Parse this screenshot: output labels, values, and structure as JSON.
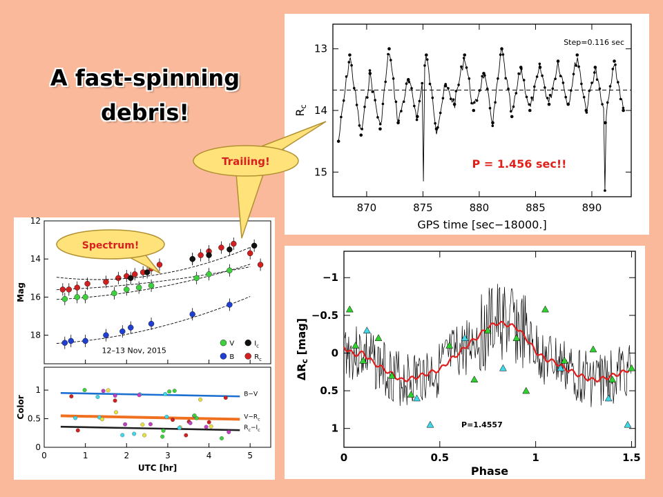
{
  "slide": {
    "title_line1": "A fast-spinning",
    "title_line2": "debris!",
    "callout_trailing": "Trailing!",
    "callout_spectrum": "Spectrum!",
    "period_annotation": "P = 1.456 sec!!",
    "colors": {
      "background": "#f9b99a",
      "callout_fill": "#ffe27a",
      "annotation": "#e0201a"
    }
  },
  "chart_data": [
    {
      "type": "line",
      "id": "trailing-lightcurve",
      "xlabel": "GPS time [sec−18000.]",
      "ylabel": "R",
      "ylabel_sub": "c",
      "annotation": "Step=0.116 sec",
      "xlim": [
        867,
        893.5
      ],
      "ylim": [
        15.4,
        12.6
      ],
      "y_inverted": true,
      "xticks": [
        870,
        875,
        880,
        885,
        890
      ],
      "yticks": [
        13,
        14,
        15
      ],
      "mean_line": 13.67,
      "series": [
        {
          "x": [
            867.5,
            868.5,
            869.5,
            870.3,
            871.2,
            872.0,
            872.8,
            873.7,
            874.5,
            875.3,
            876.2,
            877.0,
            877.8,
            878.7,
            879.5,
            880.4,
            881.2,
            882.0,
            882.9,
            883.7,
            884.5,
            885.4,
            886.2,
            887.0,
            887.9,
            888.7,
            889.5,
            890.3,
            891.2,
            892.0,
            892.8
          ],
          "y": [
            14.5,
            13.1,
            14.4,
            13.4,
            14.3,
            13.0,
            14.2,
            13.5,
            14.1,
            13.1,
            14.3,
            13.6,
            13.9,
            13.1,
            14.0,
            13.4,
            14.2,
            13.0,
            14.1,
            13.3,
            14.0,
            13.3,
            13.9,
            13.2,
            13.9,
            13.1,
            14.0,
            13.3,
            14.2,
            13.2,
            14.0
          ]
        }
      ]
    },
    {
      "type": "scatter",
      "id": "multiband-lightcurve",
      "xlabel": "UTC [hr]",
      "ylabel_top": "Mag",
      "ylabel_bottom": "Color",
      "annotation": "12–13 Nov, 2015",
      "xlim": [
        0,
        5.5
      ],
      "xticks": [
        0,
        1,
        2,
        3,
        4,
        5
      ],
      "ylim_top": [
        19.5,
        12
      ],
      "yticks_top": [
        12,
        14,
        16,
        18
      ],
      "ylim_bottom": [
        0,
        1.4
      ],
      "yticks_bottom": [
        0,
        0.5,
        1
      ],
      "legend": [
        {
          "name": "V",
          "color": "#3fcf3f"
        },
        {
          "name": "I",
          "sub": "c",
          "color": "#111111"
        },
        {
          "name": "B",
          "color": "#1f3fd0"
        },
        {
          "name": "R",
          "sub": "c",
          "color": "#d02020"
        }
      ],
      "color_labels": [
        {
          "name": "B−V",
          "value": 0.95
        },
        {
          "name": "V−R",
          "sub": "c",
          "value": 0.55
        },
        {
          "name": "R",
          "sub": "c",
          "suffix": "−I",
          "sub2": "c",
          "value": 0.36
        }
      ],
      "series": [
        {
          "name": "R",
          "x": [
            0.45,
            0.6,
            0.8,
            1.05,
            1.5,
            1.8,
            2.0,
            2.2,
            2.4,
            2.6,
            2.8,
            3.6,
            3.8,
            4.0,
            4.3,
            4.6,
            5.0,
            5.25
          ],
          "y": [
            15.6,
            15.6,
            15.5,
            15.3,
            15.2,
            15.0,
            14.9,
            14.8,
            14.7,
            14.5,
            14.3,
            14.0,
            13.8,
            13.6,
            13.4,
            13.2,
            13.7,
            14.3
          ]
        },
        {
          "name": "V",
          "x": [
            0.5,
            0.8,
            1.0,
            1.7,
            2.0,
            2.3,
            2.6,
            3.7,
            4.0,
            4.5
          ],
          "y": [
            16.1,
            16.0,
            16.0,
            15.8,
            15.6,
            15.5,
            15.4,
            15.0,
            14.8,
            14.6
          ]
        },
        {
          "name": "I",
          "x": [
            2.1,
            2.5,
            3.6,
            4.0,
            4.5,
            5.1
          ],
          "y": [
            15.0,
            14.7,
            14.0,
            13.8,
            13.5,
            13.3
          ]
        },
        {
          "name": "B",
          "x": [
            0.5,
            0.65,
            1.0,
            1.5,
            1.9,
            2.1,
            2.6,
            3.6,
            4.5
          ],
          "y": [
            18.4,
            18.3,
            18.3,
            18.0,
            17.8,
            17.6,
            17.4,
            16.9,
            16.4
          ]
        }
      ]
    },
    {
      "type": "line",
      "id": "phased-lightcurve",
      "xlabel": "Phase",
      "ylabel": "ΔR",
      "ylabel_sub": "c",
      "ylabel_unit": "[mag]",
      "annotation": "P=1.4557",
      "xlim": [
        0,
        1.52
      ],
      "ylim": [
        1.25,
        -1.35
      ],
      "y_inverted": true,
      "xticks": [
        0,
        0.5,
        1,
        1.5
      ],
      "yticks": [
        -1,
        -0.5,
        0,
        0.5,
        1
      ],
      "ytick_labels": [
        "−1",
        "−0.5",
        "0",
        "0.5",
        "1"
      ],
      "series": [
        {
          "name": "smoothed",
          "color": "#e01c1c",
          "x": [
            0,
            0.05,
            0.1,
            0.15,
            0.2,
            0.25,
            0.3,
            0.35,
            0.4,
            0.45,
            0.5,
            0.55,
            0.6,
            0.65,
            0.7,
            0.75,
            0.8,
            0.85,
            0.9,
            0.95,
            1.0,
            1.05,
            1.1,
            1.15,
            1.2,
            1.25,
            1.3,
            1.35,
            1.4,
            1.45,
            1.5
          ],
          "y": [
            -0.08,
            0.02,
            0.0,
            0.12,
            0.2,
            0.28,
            0.36,
            0.34,
            0.3,
            0.26,
            0.22,
            0.1,
            0.0,
            -0.12,
            -0.22,
            -0.34,
            -0.4,
            -0.38,
            -0.34,
            -0.2,
            -0.02,
            0.08,
            0.12,
            0.2,
            0.26,
            0.32,
            0.36,
            0.34,
            0.3,
            0.26,
            0.2
          ]
        },
        {
          "name": "cyan-points",
          "color": "#40d8e8",
          "x": [
            0.12,
            0.38,
            0.45,
            0.63,
            0.83,
            1.13,
            1.38,
            1.48
          ],
          "y": [
            -0.3,
            0.6,
            0.95,
            -0.2,
            0.2,
            0.2,
            0.6,
            0.95
          ]
        },
        {
          "name": "green-points",
          "color": "#30d030",
          "x": [
            0.03,
            0.06,
            0.1,
            0.18,
            0.25,
            0.35,
            0.55,
            0.68,
            0.75,
            0.9,
            0.95,
            1.05,
            1.15,
            1.3,
            1.4,
            1.5
          ],
          "y": [
            -0.58,
            -0.1,
            0.1,
            -0.2,
            0.3,
            0.55,
            -0.1,
            0.35,
            -0.3,
            -0.2,
            0.5,
            -0.58,
            0.1,
            -0.05,
            0.35,
            0.2
          ]
        }
      ]
    }
  ]
}
